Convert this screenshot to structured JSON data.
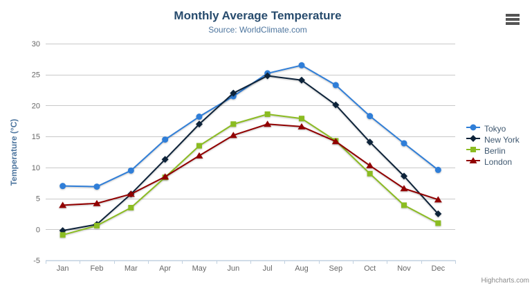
{
  "toolbar": {
    "menu_icon": "hamburger-menu"
  },
  "credit": {
    "label": "Highcharts.com"
  },
  "chart_data": {
    "type": "line",
    "title": "Monthly Average Temperature",
    "subtitle": "Source: WorldClimate.com",
    "categories": [
      "Jan",
      "Feb",
      "Mar",
      "Apr",
      "May",
      "Jun",
      "Jul",
      "Aug",
      "Sep",
      "Oct",
      "Nov",
      "Dec"
    ],
    "xlabel": "",
    "ylabel": "Temperature (°C)",
    "ylim": [
      -5,
      30
    ],
    "ytick_step": 5,
    "grid": true,
    "legend_position": "right",
    "series": [
      {
        "name": "Tokyo",
        "color": "#2f7ed8",
        "marker": "circle",
        "values": [
          7.0,
          6.9,
          9.5,
          14.5,
          18.2,
          21.5,
          25.2,
          26.5,
          23.3,
          18.3,
          13.9,
          9.6
        ]
      },
      {
        "name": "New York",
        "color": "#0d233a",
        "marker": "diamond",
        "values": [
          -0.2,
          0.8,
          5.7,
          11.3,
          17.0,
          22.0,
          24.8,
          24.1,
          20.1,
          14.1,
          8.6,
          2.5
        ]
      },
      {
        "name": "Berlin",
        "color": "#8bbc21",
        "marker": "square",
        "values": [
          -0.9,
          0.6,
          3.5,
          8.4,
          13.5,
          17.0,
          18.6,
          17.9,
          14.3,
          9.0,
          3.9,
          1.0
        ]
      },
      {
        "name": "London",
        "color": "#910000",
        "marker": "triangle",
        "values": [
          3.9,
          4.2,
          5.7,
          8.5,
          11.9,
          15.2,
          17.0,
          16.6,
          14.2,
          10.3,
          6.6,
          4.8
        ]
      }
    ],
    "style": {
      "grid_color": "#c8c8c8",
      "axis_line_color": "#c0d0e0",
      "tick_label_color": "#666666",
      "y_title_color": "#4d759e",
      "title_color": "#274b6d",
      "subtitle_color": "#4d759e",
      "legend_text_color": "#3e576f"
    }
  }
}
